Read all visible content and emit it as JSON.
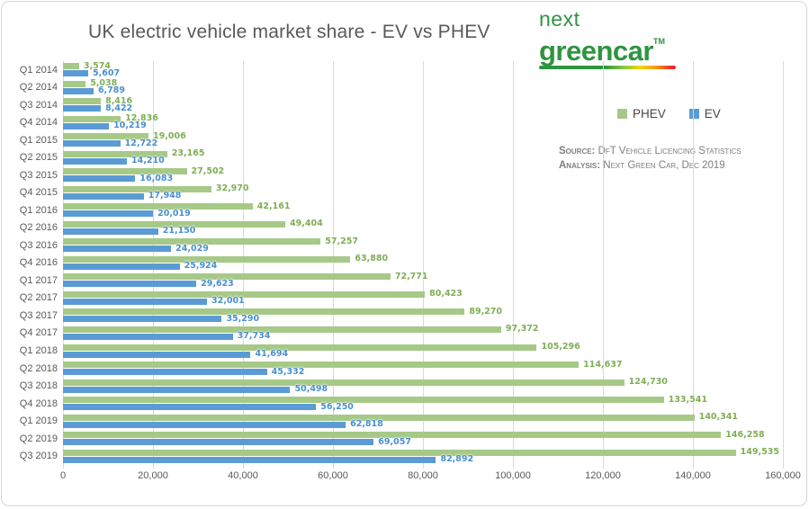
{
  "title": "UK electric vehicle market share - EV vs PHEV",
  "logo": {
    "line1": "next",
    "line2": "greencar",
    "tm": "TM"
  },
  "legend": {
    "phev": "PHEV",
    "ev": "EV"
  },
  "source": {
    "label1": "Source:",
    "text1": " DfT Vehicle Licencing Statistics",
    "label2": "Analysis:",
    "text2": " Next Green Car, Dec 2019"
  },
  "colors": {
    "phev_bar": "#a6c987",
    "phev_label": "#7fae53",
    "ev_bar": "#5b9bd5",
    "ev_label": "#4a8fd0",
    "gridline": "#d9d9d9",
    "logo_green": "#2e9440",
    "text_gray": "#595959"
  },
  "chart_data": {
    "type": "bar",
    "orientation": "horizontal",
    "title": "UK electric vehicle market share - EV vs PHEV",
    "categories": [
      "Q1 2014",
      "Q2 2014",
      "Q3 2014",
      "Q4 2014",
      "Q1 2015",
      "Q2 2015",
      "Q3 2015",
      "Q4 2015",
      "Q1 2016",
      "Q2 2016",
      "Q3 2016",
      "Q4 2016",
      "Q1 2017",
      "Q2 2017",
      "Q3 2017",
      "Q4 2017",
      "Q1 2018",
      "Q2 2018",
      "Q3 2018",
      "Q4 2018",
      "Q1 2019",
      "Q2 2019",
      "Q3 2019"
    ],
    "series": [
      {
        "name": "PHEV",
        "color": "#a6c987",
        "label_color": "#7fae53",
        "values": [
          3574,
          5038,
          8416,
          12836,
          19006,
          23165,
          27502,
          32970,
          42161,
          49404,
          57257,
          63880,
          72771,
          80423,
          89270,
          97372,
          105296,
          114637,
          124730,
          133541,
          140341,
          146258,
          149535
        ]
      },
      {
        "name": "EV",
        "color": "#5b9bd5",
        "label_color": "#4a8fd0",
        "values": [
          5607,
          6789,
          8422,
          10219,
          12722,
          14210,
          16083,
          17948,
          20019,
          21150,
          24029,
          25924,
          29623,
          32001,
          35290,
          37734,
          41694,
          45332,
          50498,
          56250,
          62818,
          69057,
          82892
        ]
      }
    ],
    "xlim": [
      0,
      160000
    ],
    "x_ticks": [
      0,
      20000,
      40000,
      60000,
      80000,
      100000,
      120000,
      140000,
      160000
    ],
    "x_tick_labels": [
      "0",
      "20,000",
      "40,000",
      "60,000",
      "80,000",
      "100,000",
      "120,000",
      "140,000",
      "160,000"
    ],
    "grid": true,
    "legend_position": "top-right",
    "data_labels": true
  }
}
